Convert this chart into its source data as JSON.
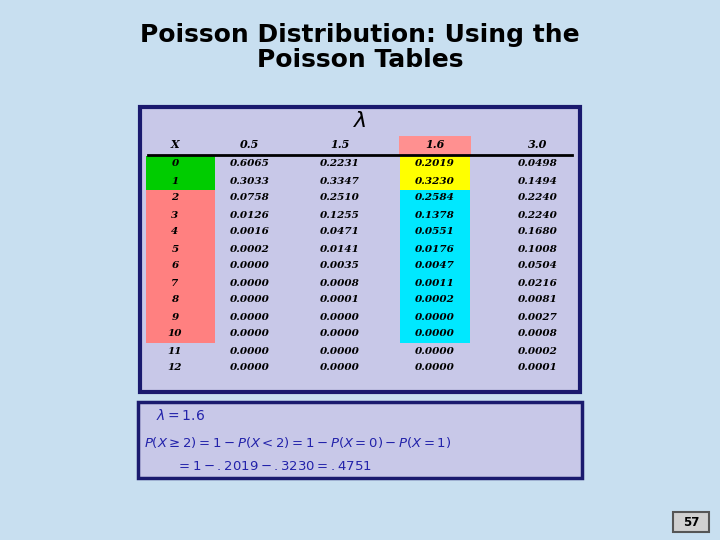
{
  "title_line1": "Poisson Distribution: Using the",
  "title_line2": "Poisson Tables",
  "bg_color": "#c8dff0",
  "table_bg": "#c8c8e8",
  "table_border": "#1a1a6e",
  "x_values": [
    "0",
    "1",
    "2",
    "3",
    "4",
    "5",
    "6",
    "7",
    "8",
    "9",
    "10",
    "11",
    "12"
  ],
  "data": [
    [
      "0.6065",
      "0.2231",
      "0.2019",
      "0.0498"
    ],
    [
      "0.3033",
      "0.3347",
      "0.3230",
      "0.1494"
    ],
    [
      "0.0758",
      "0.2510",
      "0.2584",
      "0.2240"
    ],
    [
      "0.0126",
      "0.1255",
      "0.1378",
      "0.2240"
    ],
    [
      "0.0016",
      "0.0471",
      "0.0551",
      "0.1680"
    ],
    [
      "0.0002",
      "0.0141",
      "0.0176",
      "0.1008"
    ],
    [
      "0.0000",
      "0.0035",
      "0.0047",
      "0.0504"
    ],
    [
      "0.0000",
      "0.0008",
      "0.0011",
      "0.0216"
    ],
    [
      "0.0000",
      "0.0001",
      "0.0002",
      "0.0081"
    ],
    [
      "0.0000",
      "0.0000",
      "0.0000",
      "0.0027"
    ],
    [
      "0.0000",
      "0.0000",
      "0.0000",
      "0.0008"
    ],
    [
      "0.0000",
      "0.0000",
      "0.0000",
      "0.0002"
    ],
    [
      "0.0000",
      "0.0000",
      "0.0000",
      "0.0001"
    ]
  ],
  "row_colors_x": [
    "#00cc00",
    "#00cc00",
    "#ff8080",
    "#ff8080",
    "#ff8080",
    "#ff8080",
    "#ff8080",
    "#ff8080",
    "#ff8080",
    "#ff8080",
    "#ff8080",
    "none",
    "none"
  ],
  "col_highlight_header": "#ff9090",
  "col_highlight_rows": [
    "#ffff00",
    "#ffff00",
    "#00e8ff",
    "#00e8ff",
    "#00e8ff",
    "#00e8ff",
    "#00e8ff",
    "#00e8ff",
    "#00e8ff",
    "#00e8ff",
    "#00e8ff",
    "none",
    "none"
  ],
  "formula_bg": "#c8c8e8",
  "formula_border": "#1a1a6e",
  "page_num": "57"
}
